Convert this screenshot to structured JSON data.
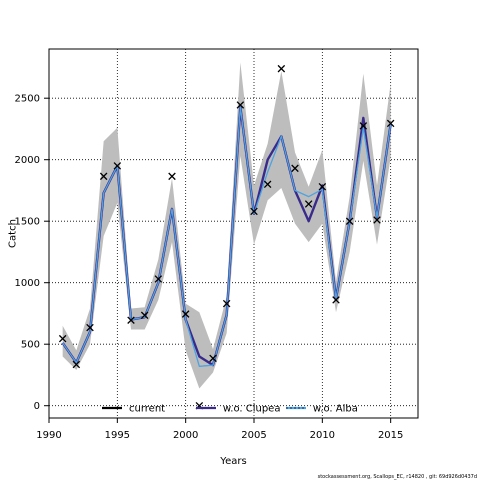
{
  "chart_data": {
    "type": "line",
    "xlabel": "Years",
    "ylabel": "Catch",
    "xlim": [
      1990,
      2017
    ],
    "ylim": [
      -100,
      2900
    ],
    "xticks": [
      1990,
      1995,
      2000,
      2005,
      2010,
      2015
    ],
    "yticks": [
      0,
      500,
      1000,
      1500,
      2000,
      2500
    ],
    "grid": true,
    "legend_position": "bottom",
    "observed": {
      "marker": "x",
      "x": [
        1991,
        1992,
        1993,
        1994,
        1995,
        1996,
        1997,
        1998,
        1999,
        2000,
        2001,
        2002,
        2003,
        2004,
        2005,
        2006,
        2007,
        2008,
        2009,
        2010,
        2011,
        2012,
        2013,
        2014,
        2015
      ],
      "y": [
        545,
        335,
        635,
        1865,
        1950,
        695,
        735,
        1030,
        1865,
        745,
        0,
        385,
        830,
        2445,
        1580,
        1800,
        2740,
        1930,
        1640,
        1780,
        860,
        1500,
        2275,
        1510,
        2295
      ]
    },
    "series": [
      {
        "name": "current",
        "color": "#000000",
        "x": [
          1991,
          1992,
          1993,
          1994,
          1995,
          1996,
          1997,
          1998,
          1999,
          2000,
          2001,
          2002,
          2003,
          2004,
          2005,
          2006,
          2007,
          2008,
          2009,
          2010,
          2011,
          2012,
          2013,
          2014,
          2015
        ],
        "y": [
          510,
          350,
          600,
          1730,
          1950,
          700,
          720,
          1000,
          1600,
          700,
          400,
          330,
          740,
          2430,
          1560,
          2000,
          2190,
          1750,
          1500,
          1790,
          870,
          1500,
          2340,
          1530,
          2290
        ]
      },
      {
        "name": "w.o. Clupea",
        "color": "#3a2a8c",
        "x": [
          1991,
          1992,
          1993,
          1994,
          1995,
          1996,
          1997,
          1998,
          1999,
          2000,
          2001,
          2002,
          2003,
          2004,
          2005,
          2006,
          2007,
          2008,
          2009,
          2010,
          2011,
          2012,
          2013,
          2014,
          2015
        ],
        "y": [
          510,
          350,
          600,
          1730,
          1950,
          700,
          720,
          1000,
          1600,
          700,
          400,
          330,
          740,
          2430,
          1560,
          2000,
          2190,
          1750,
          1500,
          1790,
          870,
          1500,
          2340,
          1530,
          2290
        ]
      },
      {
        "name": "w.o. Alba",
        "color": "#4fa3e0",
        "x": [
          1991,
          1992,
          1993,
          1994,
          1995,
          1996,
          1997,
          1998,
          1999,
          2000,
          2001,
          2002,
          2003,
          2004,
          2005,
          2006,
          2007,
          2008,
          2009,
          2010,
          2011,
          2012,
          2013,
          2014,
          2015
        ],
        "y": [
          510,
          350,
          600,
          1730,
          1950,
          700,
          720,
          1000,
          1600,
          700,
          320,
          330,
          740,
          2430,
          1560,
          1900,
          2190,
          1750,
          1700,
          1760,
          870,
          1500,
          2260,
          1530,
          2290
        ]
      }
    ],
    "band": {
      "color": "#bdbdbd",
      "x": [
        1991,
        1992,
        1993,
        1994,
        1995,
        1996,
        1997,
        1998,
        1999,
        2000,
        2001,
        2002,
        2003,
        2004,
        2005,
        2006,
        2007,
        2008,
        2009,
        2010,
        2011,
        2012,
        2013,
        2014,
        2015
      ],
      "lower": [
        400,
        290,
        500,
        1380,
        1650,
        620,
        620,
        860,
        1330,
        450,
        140,
        270,
        590,
        2030,
        1310,
        1670,
        1770,
        1480,
        1330,
        1480,
        760,
        1250,
        1990,
        1310,
        2020
      ],
      "upper": [
        650,
        450,
        790,
        2150,
        2260,
        790,
        800,
        1190,
        1850,
        830,
        760,
        460,
        890,
        2790,
        1790,
        2130,
        2720,
        2060,
        1780,
        2080,
        1010,
        1700,
        2700,
        1790,
        2620
      ]
    },
    "footer": "stockassessment.org, Scallops_EC, r14820 , git: 69d926d0437d"
  }
}
